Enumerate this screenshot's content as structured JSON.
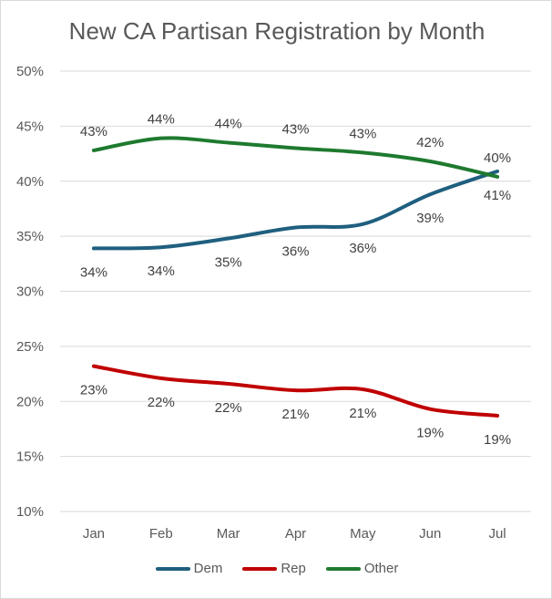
{
  "chart_data": {
    "type": "line",
    "title": "New CA Partisan Registration by Month",
    "categories": [
      "Jan",
      "Feb",
      "Mar",
      "Apr",
      "May",
      "Jun",
      "Jul"
    ],
    "ylim": [
      10,
      50
    ],
    "yticks": [
      10,
      15,
      20,
      25,
      30,
      35,
      40,
      45,
      50
    ],
    "ytick_suffix": "%",
    "grid": true,
    "legend_position": "bottom",
    "series": [
      {
        "name": "Dem",
        "color": "#1f5f7f",
        "values": [
          33.9,
          34.0,
          34.8,
          35.8,
          36.1,
          38.8,
          40.9
        ],
        "labels": [
          "34%",
          "34%",
          "35%",
          "36%",
          "36%",
          "39%",
          "41%"
        ],
        "label_side": [
          "below",
          "below",
          "below",
          "below",
          "below",
          "below",
          "below"
        ]
      },
      {
        "name": "Rep",
        "color": "#c00000",
        "values": [
          23.2,
          22.1,
          21.6,
          21.0,
          21.1,
          19.3,
          18.7
        ],
        "labels": [
          "23%",
          "22%",
          "22%",
          "21%",
          "21%",
          "19%",
          "19%"
        ],
        "label_side": [
          "below",
          "below",
          "below",
          "below",
          "below",
          "below",
          "below"
        ]
      },
      {
        "name": "Other",
        "color": "#1e7a2e",
        "values": [
          42.8,
          43.9,
          43.5,
          43.0,
          42.6,
          41.8,
          40.4
        ],
        "labels": [
          "43%",
          "44%",
          "44%",
          "43%",
          "43%",
          "42%",
          "40%"
        ],
        "label_side": [
          "above",
          "above",
          "above",
          "above",
          "above",
          "above",
          "above"
        ]
      }
    ]
  }
}
